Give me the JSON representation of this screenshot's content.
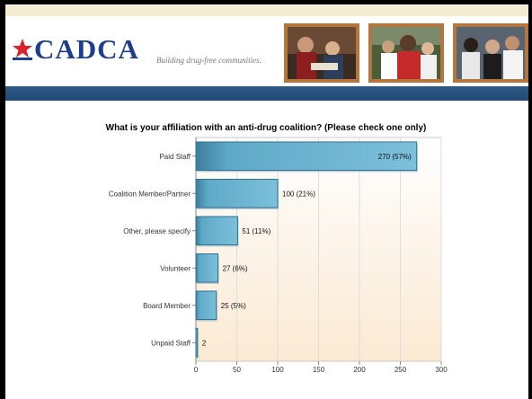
{
  "header": {
    "logo_text": "CADCA",
    "tagline": "Building drug-free communities."
  },
  "chart_data": {
    "type": "bar",
    "orientation": "horizontal",
    "title": "What is your affiliation with an anti-drug coalition? (Please check one only)",
    "categories": [
      "Paid Staff",
      "Coalition Member/Partner",
      "Other, please specify",
      "Volunteer",
      "Board Member",
      "Unpaid Staff"
    ],
    "values": [
      270,
      100,
      51,
      27,
      25,
      2
    ],
    "data_labels": [
      "270 (57%)",
      "100 (21%)",
      "51 (11%)",
      "27 (6%)",
      "25 (5%)",
      "2"
    ],
    "xlim": [
      0,
      300
    ],
    "xticks": [
      "0",
      "50",
      "100",
      "150",
      "200",
      "250",
      "300"
    ],
    "grid": true,
    "colors": {
      "bar": "#5fa9c8",
      "bar_dark": "#2f6f8f",
      "plot_bg_top": "#ffffff",
      "plot_bg_bottom": "#fbe9d3"
    }
  }
}
